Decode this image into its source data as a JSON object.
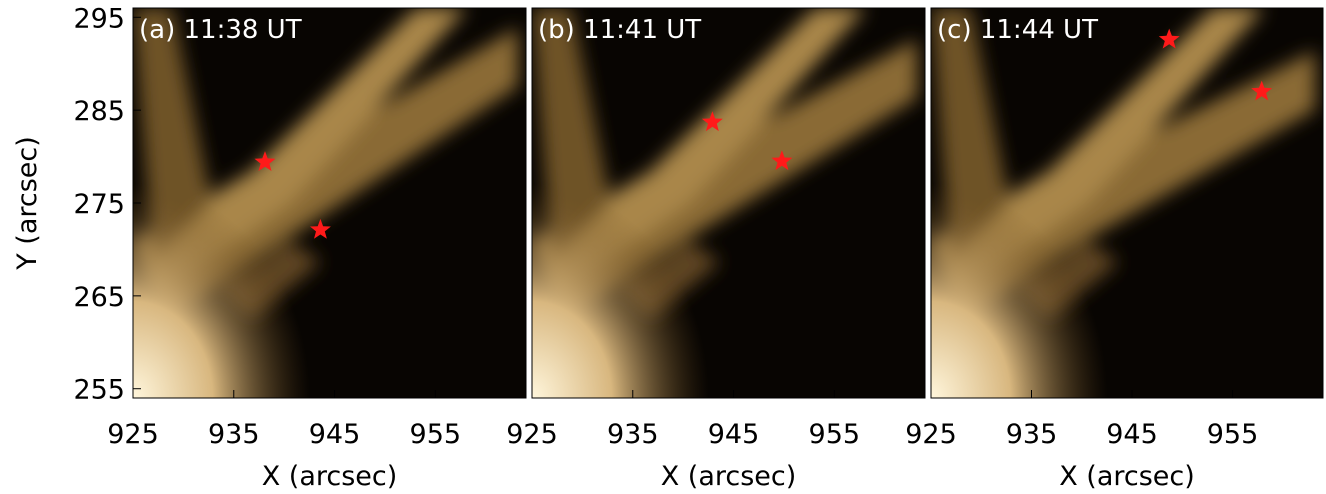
{
  "chart_data": [
    {
      "type": "scatter",
      "title": "(a) 11:38 UT",
      "x_label": "X (arcsec)",
      "y_label": "Y (arcsec)",
      "xlim": [
        925,
        964
      ],
      "ylim": [
        254,
        296
      ],
      "xticks": [
        925,
        935,
        945,
        955
      ],
      "yticks": [
        255,
        265,
        275,
        285,
        295
      ],
      "series": [
        {
          "color": "#ff1a1a",
          "x": [
            938.1,
            943.6
          ],
          "values": [
            279.4,
            272.1
          ]
        }
      ]
    },
    {
      "type": "scatter",
      "title": "(b) 11:41 UT",
      "x_label": "X (arcsec)",
      "xlim": [
        925,
        964
      ],
      "ylim": [
        254,
        296
      ],
      "xticks": [
        925,
        935,
        945,
        955
      ],
      "series": [
        {
          "color": "#ff1a1a",
          "x": [
            942.9,
            949.8
          ],
          "values": [
            283.7,
            279.5
          ]
        }
      ]
    },
    {
      "type": "scatter",
      "title": "(c) 11:44 UT",
      "x_label": "X (arcsec)",
      "xlim": [
        925,
        964
      ],
      "ylim": [
        254,
        296
      ],
      "xticks": [
        925,
        935,
        945,
        955
      ],
      "series": [
        {
          "color": "#ff1a1a",
          "x": [
            948.7,
            957.9
          ],
          "values": [
            292.6,
            287.0
          ]
        }
      ]
    }
  ]
}
